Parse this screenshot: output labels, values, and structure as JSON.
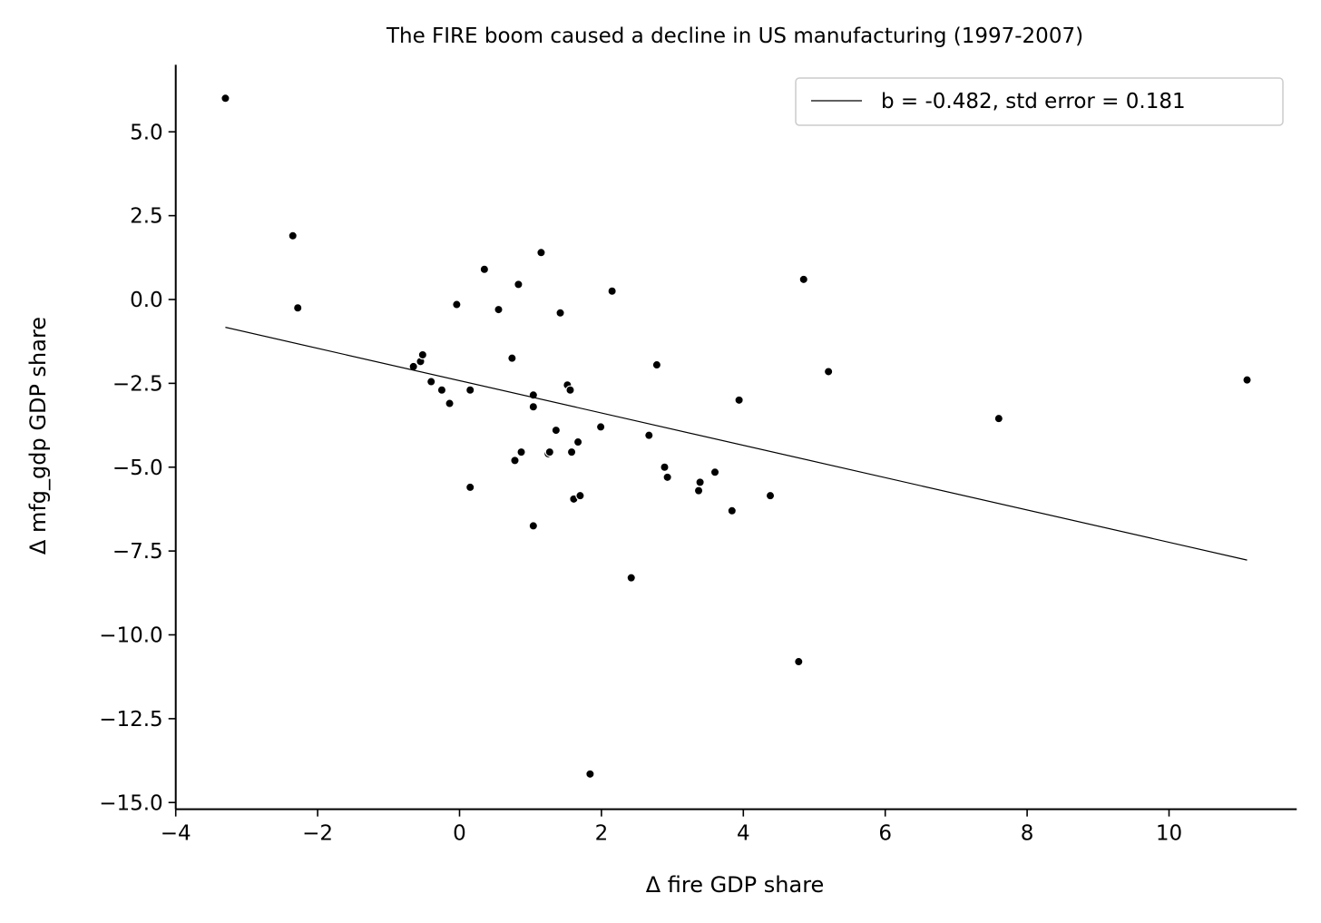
{
  "chart_data": {
    "type": "scatter",
    "title": "The FIRE boom caused a decline in US manufacturing (1997-2007)",
    "xlabel": "Δ fire GDP share",
    "ylabel": "Δ mfg_gdp GDP share",
    "xlim": [
      -4,
      11.8
    ],
    "ylim": [
      -15.2,
      7.0
    ],
    "x_ticks": [
      -4,
      -2,
      0,
      2,
      4,
      6,
      8,
      10
    ],
    "x_tick_labels": [
      "−4",
      "−2",
      "0",
      "2",
      "4",
      "6",
      "8",
      "10"
    ],
    "y_ticks": [
      5.0,
      2.5,
      0.0,
      -2.5,
      -5.0,
      -7.5,
      -10.0,
      -12.5,
      -15.0
    ],
    "y_tick_labels": [
      "5.0",
      "2.5",
      "0.0",
      "−2.5",
      "−5.0",
      "−7.5",
      "−10.0",
      "−12.5",
      "−15.0"
    ],
    "grid": false,
    "legend": {
      "position": "upper-right",
      "entries": [
        "b = -0.482, std error = 0.181"
      ]
    },
    "fit_line": {
      "slope": -0.482,
      "intercept": -2.42,
      "x_range": [
        -3.3,
        11.1
      ]
    },
    "points": [
      {
        "x": -3.3,
        "y": 6.0
      },
      {
        "x": -2.35,
        "y": 1.9
      },
      {
        "x": -2.28,
        "y": -0.25
      },
      {
        "x": -0.65,
        "y": -2.0
      },
      {
        "x": -0.55,
        "y": -1.85
      },
      {
        "x": -0.52,
        "y": -1.65
      },
      {
        "x": -0.4,
        "y": -2.45
      },
      {
        "x": -0.25,
        "y": -2.7
      },
      {
        "x": -0.14,
        "y": -3.1
      },
      {
        "x": -0.04,
        "y": -0.15
      },
      {
        "x": 0.15,
        "y": -2.7
      },
      {
        "x": 0.15,
        "y": -5.6
      },
      {
        "x": 0.35,
        "y": 0.9
      },
      {
        "x": 0.55,
        "y": -0.3
      },
      {
        "x": 0.74,
        "y": -1.75
      },
      {
        "x": 0.78,
        "y": -4.8
      },
      {
        "x": 0.83,
        "y": 0.45
      },
      {
        "x": 0.87,
        "y": -4.55
      },
      {
        "x": 1.04,
        "y": -2.85
      },
      {
        "x": 1.04,
        "y": -3.2
      },
      {
        "x": 1.04,
        "y": -6.75
      },
      {
        "x": 1.15,
        "y": 1.4
      },
      {
        "x": 1.25,
        "y": -4.6
      },
      {
        "x": 1.27,
        "y": -4.55
      },
      {
        "x": 1.36,
        "y": -3.9
      },
      {
        "x": 1.42,
        "y": -0.4
      },
      {
        "x": 1.52,
        "y": -2.55
      },
      {
        "x": 1.56,
        "y": -2.7
      },
      {
        "x": 1.58,
        "y": -4.55
      },
      {
        "x": 1.61,
        "y": -5.95
      },
      {
        "x": 1.67,
        "y": -4.25
      },
      {
        "x": 1.7,
        "y": -5.85
      },
      {
        "x": 1.84,
        "y": -14.15
      },
      {
        "x": 1.99,
        "y": -3.8
      },
      {
        "x": 2.15,
        "y": 0.25
      },
      {
        "x": 2.42,
        "y": -8.3
      },
      {
        "x": 2.67,
        "y": -4.05
      },
      {
        "x": 2.78,
        "y": -1.95
      },
      {
        "x": 2.89,
        "y": -5.0
      },
      {
        "x": 2.93,
        "y": -5.3
      },
      {
        "x": 3.37,
        "y": -5.7
      },
      {
        "x": 3.39,
        "y": -5.45
      },
      {
        "x": 3.6,
        "y": -5.15
      },
      {
        "x": 3.84,
        "y": -6.3
      },
      {
        "x": 3.94,
        "y": -3.0
      },
      {
        "x": 4.38,
        "y": -5.85
      },
      {
        "x": 4.78,
        "y": -10.8
      },
      {
        "x": 4.85,
        "y": 0.6
      },
      {
        "x": 5.2,
        "y": -2.15
      },
      {
        "x": 7.6,
        "y": -3.55
      },
      {
        "x": 11.1,
        "y": -2.4
      }
    ]
  }
}
